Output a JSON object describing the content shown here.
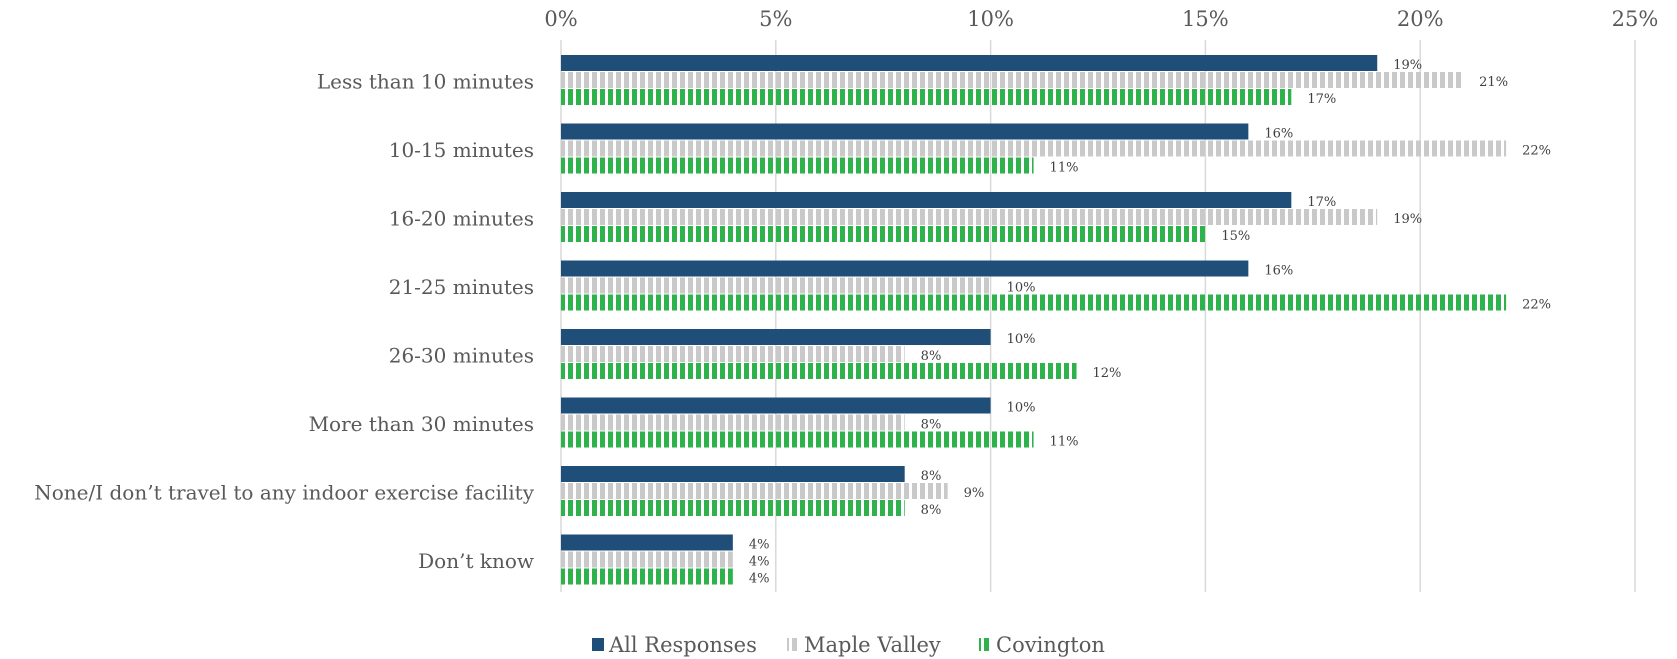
{
  "chart_data": {
    "type": "bar",
    "orientation": "horizontal",
    "categories": [
      "Less than 10 minutes",
      "10-15 minutes",
      "16-20 minutes",
      "21-25 minutes",
      "26-30 minutes",
      "More than 30 minutes",
      "None/I don’t travel to any indoor exercise facility",
      "Don’t know"
    ],
    "series": [
      {
        "name": "All Responses",
        "color": "#1f4e79",
        "pattern": "solid",
        "values": [
          19,
          16,
          17,
          16,
          10,
          10,
          8,
          4
        ],
        "labels": [
          "19%",
          "16%",
          "17%",
          "16%",
          "10%",
          "10%",
          "8%",
          "4%"
        ]
      },
      {
        "name": "Maple Valley",
        "color": "#c9c9c9",
        "pattern": "vertical-stripes",
        "values": [
          21,
          22,
          19,
          10,
          8,
          8,
          9,
          4
        ],
        "labels": [
          "21%",
          "22%",
          "19%",
          "10%",
          "8%",
          "8%",
          "9%",
          "4%"
        ]
      },
      {
        "name": "Covington",
        "color": "#2eb24b",
        "pattern": "vertical-stripes",
        "values": [
          17,
          11,
          15,
          22,
          12,
          11,
          8,
          4
        ],
        "labels": [
          "17%",
          "11%",
          "15%",
          "22%",
          "12%",
          "11%",
          "8%",
          "4%"
        ]
      }
    ],
    "xlim": [
      0,
      25
    ],
    "xticks": [
      "0%",
      "5%",
      "10%",
      "15%",
      "20%",
      "25%"
    ],
    "x_axis_position": "top",
    "grid": true,
    "legend_position": "bottom",
    "title": "",
    "xlabel": "",
    "ylabel": ""
  }
}
